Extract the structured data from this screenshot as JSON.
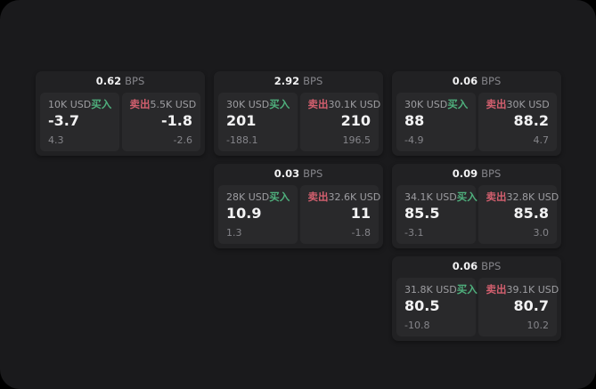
{
  "window": {
    "colors": {
      "outside": "#000000",
      "panel": "#1a1a1c",
      "card": "#212123",
      "tile": "#29292b",
      "text_primary": "#f2f2f3",
      "text_secondary": "#9d9da1",
      "text_dim": "#85858a",
      "buy_green": "#4fb07d",
      "sell_red": "#d25f6e"
    }
  },
  "labels": {
    "bps_unit": "BPS",
    "buy": "买入",
    "sell": "卖出"
  },
  "cards": [
    {
      "row": 1,
      "col": 1,
      "bps": "0.62",
      "buy": {
        "amount": "10K USD",
        "price": "-3.7",
        "change": "4.3"
      },
      "sell": {
        "amount": "5.5K USD",
        "price": "-1.8",
        "change": "-2.6"
      }
    },
    {
      "row": 1,
      "col": 2,
      "bps": "2.92",
      "buy": {
        "amount": "30K USD",
        "price": "201",
        "change": "-188.1"
      },
      "sell": {
        "amount": "30.1K USD",
        "price": "210",
        "change": "196.5"
      }
    },
    {
      "row": 1,
      "col": 3,
      "bps": "0.06",
      "buy": {
        "amount": "30K USD",
        "price": "88",
        "change": "-4.9"
      },
      "sell": {
        "amount": "30K USD",
        "price": "88.2",
        "change": "4.7"
      }
    },
    {
      "row": 2,
      "col": 2,
      "bps": "0.03",
      "buy": {
        "amount": "28K USD",
        "price": "10.9",
        "change": "1.3"
      },
      "sell": {
        "amount": "32.6K USD",
        "price": "11",
        "change": "-1.8"
      }
    },
    {
      "row": 2,
      "col": 3,
      "bps": "0.09",
      "buy": {
        "amount": "34.1K USD",
        "price": "85.5",
        "change": "-3.1"
      },
      "sell": {
        "amount": "32.8K USD",
        "price": "85.8",
        "change": "3.0"
      }
    },
    {
      "row": 3,
      "col": 3,
      "bps": "0.06",
      "buy": {
        "amount": "31.8K USD",
        "price": "80.5",
        "change": "-10.8"
      },
      "sell": {
        "amount": "39.1K USD",
        "price": "80.7",
        "change": "10.2"
      }
    }
  ]
}
